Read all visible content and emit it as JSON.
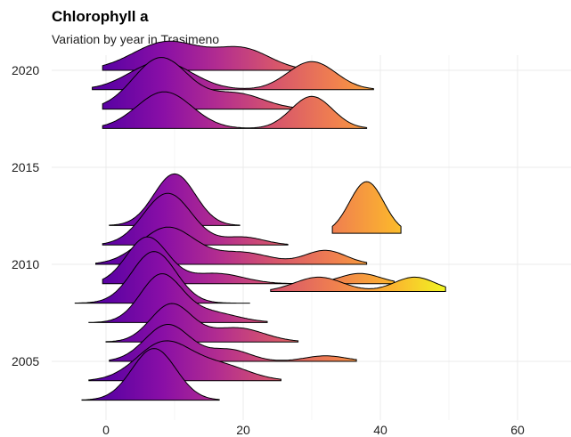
{
  "chart_data": {
    "type": "ridgeline",
    "title": "Chlorophyll a",
    "subtitle": "Variation by year in Trasimeno",
    "xlabel": "",
    "ylabel": "",
    "xlim": [
      -5,
      67
    ],
    "x_ticks": [
      0,
      20,
      40,
      60
    ],
    "y_ticks": [
      2005,
      2010,
      2015,
      2020
    ],
    "ylim": [
      2002.6,
      2022.3
    ],
    "grid": true,
    "legend": "none",
    "fill_gradient": [
      "#5B02A3",
      "#8A0FA6",
      "#B42E8F",
      "#D8576B",
      "#F0804F",
      "#FBB32F",
      "#F0F921"
    ],
    "series": [
      {
        "year": 2003,
        "components": [
          {
            "mean": 7,
            "sd": 3.2,
            "w": 1.0
          }
        ],
        "range": [
          -3.5,
          16.5
        ]
      },
      {
        "year": 2004,
        "components": [
          {
            "mean": 8.5,
            "sd": 4,
            "w": 0.8
          },
          {
            "mean": 17,
            "sd": 4,
            "w": 0.3
          }
        ],
        "range": [
          -2.5,
          25.5
        ]
      },
      {
        "year": 2005,
        "components": [
          {
            "mean": 9,
            "sd": 3.3,
            "w": 0.8
          },
          {
            "mean": 18,
            "sd": 3,
            "w": 0.25
          },
          {
            "mean": 32,
            "sd": 3,
            "w": 0.12
          }
        ],
        "range": [
          0.5,
          36.5
        ]
      },
      {
        "year": 2006,
        "components": [
          {
            "mean": 9.5,
            "sd": 3,
            "w": 0.8
          },
          {
            "mean": 19,
            "sd": 4,
            "w": 0.3
          }
        ],
        "range": [
          0,
          28
        ]
      },
      {
        "year": 2007,
        "components": [
          {
            "mean": 8,
            "sd": 3,
            "w": 0.9
          },
          {
            "mean": 15,
            "sd": 4,
            "w": 0.2
          }
        ],
        "range": [
          -2.5,
          23.5
        ]
      },
      {
        "year": 2008,
        "components": [
          {
            "mean": 7,
            "sd": 3.2,
            "w": 1.0
          }
        ],
        "range": [
          -4.5,
          21
        ]
      },
      {
        "year": 2008.6,
        "components": [
          {
            "mean": 31,
            "sd": 3.5,
            "w": 0.5
          },
          {
            "mean": 45,
            "sd": 3,
            "w": 0.5
          }
        ],
        "range": [
          24,
          49.5
        ]
      },
      {
        "year": 2009,
        "components": [
          {
            "mean": 6,
            "sd": 3,
            "w": 0.9
          },
          {
            "mean": 16,
            "sd": 4,
            "w": 0.2
          },
          {
            "mean": 37,
            "sd": 3,
            "w": 0.2
          }
        ],
        "range": [
          -0.5,
          42
        ]
      },
      {
        "year": 2010,
        "components": [
          {
            "mean": 9,
            "sd": 4,
            "w": 0.8
          },
          {
            "mean": 20,
            "sd": 4,
            "w": 0.25
          },
          {
            "mean": 32,
            "sd": 3,
            "w": 0.3
          }
        ],
        "range": [
          -1.5,
          38
        ]
      },
      {
        "year": 2011,
        "components": [
          {
            "mean": 9,
            "sd": 3.5,
            "w": 1.0
          },
          {
            "mean": 20,
            "sd": 3,
            "w": 0.15
          }
        ],
        "range": [
          -0.5,
          26.5
        ]
      },
      {
        "year": 2011.6,
        "components": [
          {
            "mean": 38,
            "sd": 2.5,
            "w": 1.0
          }
        ],
        "range": [
          33,
          43
        ]
      },
      {
        "year": 2012,
        "components": [
          {
            "mean": 10,
            "sd": 3,
            "w": 1.0
          }
        ],
        "range": [
          0.5,
          19.5
        ]
      },
      {
        "year": 2017,
        "components": [
          {
            "mean": 8.5,
            "sd": 4,
            "w": 0.8
          },
          {
            "mean": 30,
            "sd": 3,
            "w": 0.7
          }
        ],
        "range": [
          -0.5,
          38
        ]
      },
      {
        "year": 2018,
        "components": [
          {
            "mean": 8,
            "sd": 4,
            "w": 1.0
          },
          {
            "mean": 19,
            "sd": 4,
            "w": 0.3
          }
        ],
        "range": [
          -0.5,
          32
        ]
      },
      {
        "year": 2019,
        "components": [
          {
            "mean": 8,
            "sd": 4.5,
            "w": 0.7
          },
          {
            "mean": 30,
            "sd": 3.5,
            "w": 0.7
          }
        ],
        "range": [
          -2,
          39
        ]
      },
      {
        "year": 2020,
        "components": [
          {
            "mean": 9,
            "sd": 5,
            "w": 0.7
          },
          {
            "mean": 20,
            "sd": 4,
            "w": 0.5
          }
        ],
        "range": [
          -0.5,
          28
        ]
      }
    ]
  }
}
